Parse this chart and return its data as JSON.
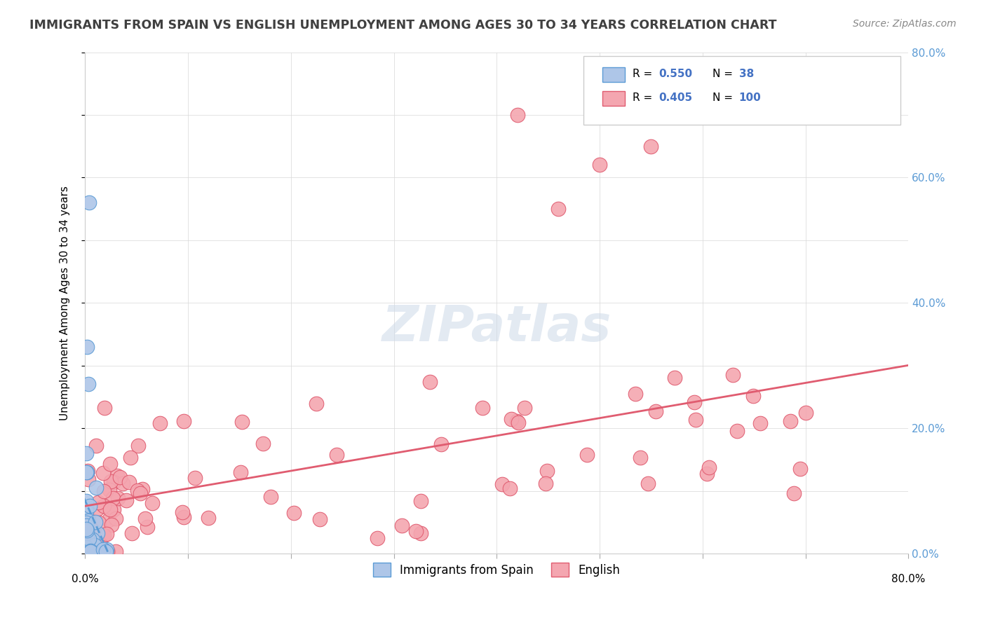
{
  "title": "IMMIGRANTS FROM SPAIN VS ENGLISH UNEMPLOYMENT AMONG AGES 30 TO 34 YEARS CORRELATION CHART",
  "source": "Source: ZipAtlas.com",
  "ylabel": "Unemployment Among Ages 30 to 34 years",
  "xlim": [
    0.0,
    0.8
  ],
  "ylim": [
    0.0,
    0.8
  ],
  "series1_name": "Immigrants from Spain",
  "series1_R": 0.55,
  "series1_N": 38,
  "series1_color": "#aec6e8",
  "series1_edge_color": "#5b9bd5",
  "series2_name": "English",
  "series2_R": 0.405,
  "series2_N": 100,
  "series2_color": "#f4a6b0",
  "series2_edge_color": "#e05c70",
  "legend_color": "#4472c4",
  "watermark_color": "#ccd9e8",
  "right_tick_color": "#5b9bd5",
  "title_color": "#404040",
  "source_color": "#888888"
}
